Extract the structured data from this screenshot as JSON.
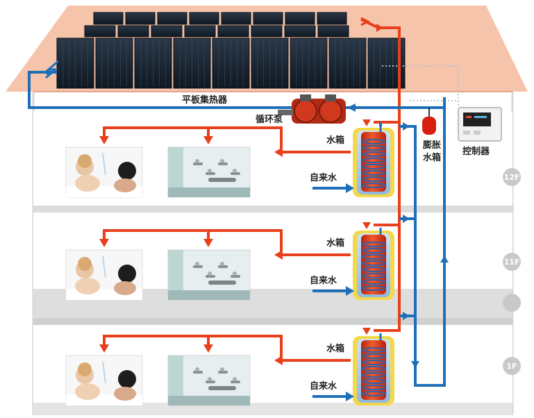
{
  "labels": {
    "collector": "平板集热器",
    "pump": "循环泵",
    "expansion_tank": "膨胀\n水箱",
    "controller": "控制器"
  },
  "floors": [
    {
      "badge": "12F",
      "tank_label": "水箱",
      "inlet_label": "自来水"
    },
    {
      "badge": "11F",
      "tank_label": "水箱",
      "inlet_label": "自来水"
    },
    {
      "badge": "",
      "tank_label": "",
      "inlet_label": ""
    },
    {
      "badge": "1F",
      "tank_label": "水箱",
      "inlet_label": "自来水"
    }
  ],
  "colors": {
    "hot": "#e8401c",
    "cold": "#1f6fb8",
    "roof": "#f6c4ab",
    "tank": "#e8401c",
    "badge": "#c9c9c9"
  }
}
